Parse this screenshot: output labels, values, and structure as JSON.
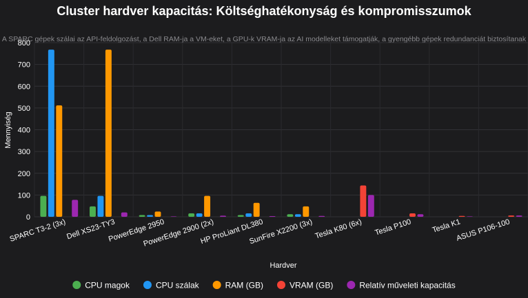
{
  "chart_data": {
    "type": "bar",
    "title": "Cluster hardver kapacitás: Költséghatékonyság és kompromisszumok",
    "subtitle": "A SPARC gépek szálai az API-feldolgozást, a Dell RAM-ja a VM-eket, a GPU-k VRAM-ja az AI modelleket támogatják, a gyengébb gépek redundanciát biztosítanak",
    "xlabel": "Hardver",
    "ylabel": "Mennyiség",
    "ylim": [
      0,
      800
    ],
    "yticks": [
      0,
      100,
      200,
      300,
      400,
      500,
      600,
      700,
      800
    ],
    "grid": true,
    "legend_position": "bottom",
    "categories": [
      "SPARC T3-2 (3x)",
      "Dell XS23-TY3",
      "PowerEdge 2950",
      "PowerEdge 2900 (2x)",
      "HP ProLiant DL380",
      "SunFire X2200 (3x)",
      "Tesla K80 (6x)",
      "Tesla P100",
      "Tesla K1",
      "ASUS P106-100"
    ],
    "series": [
      {
        "name": "CPU magok",
        "color": "#4caf50",
        "values": [
          96,
          48,
          8,
          16,
          8,
          12,
          0,
          0,
          0,
          0
        ]
      },
      {
        "name": "CPU szálak",
        "color": "#2196f3",
        "values": [
          768,
          96,
          8,
          16,
          16,
          12,
          0,
          0,
          0,
          0
        ]
      },
      {
        "name": "RAM (GB)",
        "color": "#ff9800",
        "values": [
          512,
          768,
          24,
          96,
          64,
          48,
          0,
          0,
          0,
          0
        ]
      },
      {
        "name": "VRAM (GB)",
        "color": "#f44336",
        "values": [
          0,
          0,
          0,
          0,
          0,
          0,
          144,
          16,
          4,
          6
        ]
      },
      {
        "name": "Relatív műveleti kapacitás",
        "color": "#9c27b0",
        "values": [
          78,
          20,
          2,
          5,
          3,
          4,
          100,
          12,
          2,
          6
        ]
      }
    ]
  }
}
